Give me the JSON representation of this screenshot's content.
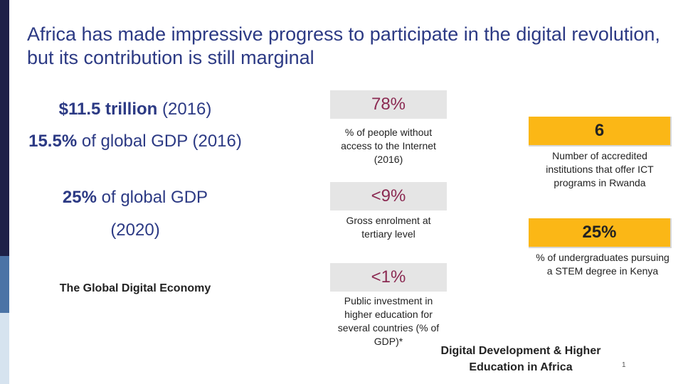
{
  "slide": {
    "title": "Africa has made impressive progress to participate in the digital revolution, but its contribution is still marginal",
    "left_stats": [
      {
        "bold": "$11.5 trillion",
        "normal": " (2016)"
      },
      {
        "bold": "15.5%",
        "normal": " of global GDP (2016)"
      },
      {
        "bold": "25%",
        "normal": " of global GDP"
      },
      {
        "bold": "",
        "normal": "(2020)"
      }
    ],
    "left_label": "The Global Digital Economy",
    "middle_boxes": [
      {
        "value": "78%",
        "description": "% of people without access to the Internet (2016)"
      },
      {
        "value": "<9%",
        "description": "Gross enrolment at tertiary level"
      },
      {
        "value": "<1%",
        "description": "Public investment in higher education for several countries (% of GDP)*"
      }
    ],
    "right_boxes": [
      {
        "value": "6",
        "description": "Number of accredited institutions that offer ICT programs in Rwanda"
      },
      {
        "value": "25%",
        "description": "% of undergraduates pursuing a STEM degree in Kenya"
      }
    ],
    "footer": "Digital Development & Higher Education in Africa",
    "page_number": "1",
    "colors": {
      "title": "#2c3a84",
      "stat_text": "#2c3a84",
      "grey_box": "#e5e5e5",
      "grey_box_text": "#8b2a52",
      "amber_box": "#fbb716",
      "left_bar_dark": "#1e2148",
      "left_bar_mid": "#4b73a6",
      "left_bar_light": "#d6e3ef"
    }
  }
}
